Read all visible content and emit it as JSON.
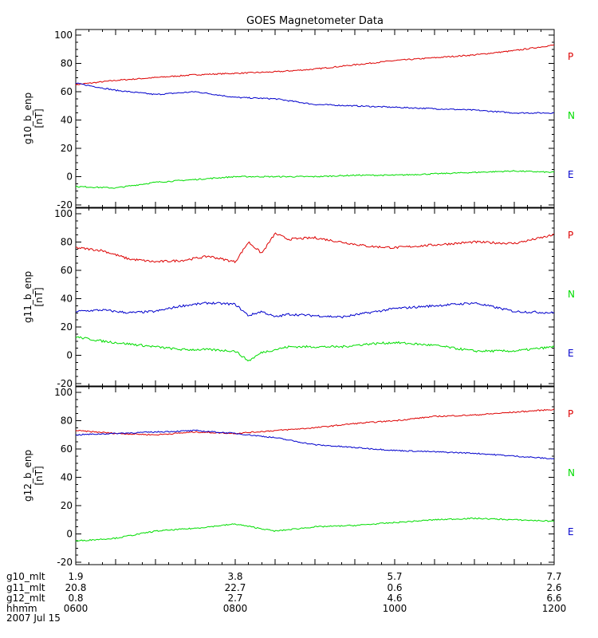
{
  "chart_data": {
    "type": "line",
    "title": "GOES Magnetometer Data",
    "x_range": [
      "0600",
      "1200"
    ],
    "date_label": "2007 Jul 15",
    "legend_colors": {
      "P": "#dd0000",
      "N": "#00dd00",
      "E": "#0000cc"
    },
    "panels": [
      {
        "id": "g10",
        "ylabel": "g10_b_enp",
        "yunit": "[nT]",
        "ylim": [
          -20,
          100
        ],
        "yticks": [
          "100",
          "80",
          "60",
          "40",
          "20",
          "0",
          "-20"
        ],
        "legend": [
          "P",
          "N",
          "E"
        ],
        "series": [
          {
            "color": "#dd0000",
            "x": [
              "0600",
              "0630",
              "0700",
              "0730",
              "0800",
              "0830",
              "0900",
              "0930",
              "1000",
              "1030",
              "1100",
              "1130",
              "1200"
            ],
            "y": [
              65,
              68,
              70,
              72,
              73,
              74,
              76,
              79,
              82,
              84,
              86,
              89,
              93
            ]
          },
          {
            "color": "#0000cc",
            "x": [
              "0600",
              "0630",
              "0700",
              "0730",
              "0800",
              "0830",
              "0900",
              "0930",
              "1000",
              "1030",
              "1100",
              "1130",
              "1200"
            ],
            "y": [
              66,
              61,
              58,
              60,
              56,
              55,
              51,
              50,
              49,
              48,
              47,
              45,
              45
            ]
          },
          {
            "color": "#00dd00",
            "x": [
              "0600",
              "0630",
              "0700",
              "0730",
              "0800",
              "0830",
              "0900",
              "0930",
              "1000",
              "1030",
              "1100",
              "1130",
              "1200"
            ],
            "y": [
              -7,
              -8,
              -4,
              -2,
              0,
              0,
              0,
              1,
              1,
              2,
              3,
              4,
              3
            ]
          }
        ]
      },
      {
        "id": "g11",
        "ylabel": "g11_b_enp",
        "yunit": "[nT]",
        "ylim": [
          -20,
          100
        ],
        "yticks": [
          "100",
          "80",
          "60",
          "40",
          "20",
          "0",
          "-20"
        ],
        "legend": [
          "P",
          "N",
          "E"
        ],
        "series": [
          {
            "color": "#dd0000",
            "x": [
              "0600",
              "0620",
              "0640",
              "0700",
              "0720",
              "0740",
              "0800",
              "0810",
              "0820",
              "0830",
              "0840",
              "0900",
              "0920",
              "0940",
              "1000",
              "1030",
              "1100",
              "1130",
              "1200"
            ],
            "y": [
              76,
              74,
              68,
              66,
              67,
              70,
              66,
              80,
              72,
              86,
              82,
              83,
              80,
              77,
              76,
              78,
              80,
              79,
              85
            ]
          },
          {
            "color": "#0000cc",
            "x": [
              "0600",
              "0620",
              "0640",
              "0700",
              "0720",
              "0740",
              "0800",
              "0810",
              "0820",
              "0830",
              "0840",
              "0900",
              "0920",
              "0940",
              "1000",
              "1030",
              "1100",
              "1130",
              "1200"
            ],
            "y": [
              31,
              32,
              30,
              31,
              35,
              37,
              36,
              28,
              31,
              27,
              29,
              28,
              27,
              30,
              33,
              35,
              37,
              31,
              30
            ]
          },
          {
            "color": "#00dd00",
            "x": [
              "0600",
              "0620",
              "0640",
              "0700",
              "0720",
              "0740",
              "0800",
              "0810",
              "0820",
              "0830",
              "0840",
              "0900",
              "0920",
              "0940",
              "1000",
              "1030",
              "1100",
              "1130",
              "1200"
            ],
            "y": [
              13,
              10,
              8,
              6,
              4,
              4,
              3,
              -4,
              2,
              4,
              6,
              6,
              6,
              8,
              9,
              7,
              3,
              3,
              6
            ]
          }
        ]
      },
      {
        "id": "g12",
        "ylabel": "g12_b_enp",
        "yunit": "[nT]",
        "ylim": [
          -20,
          100
        ],
        "yticks": [
          "100",
          "80",
          "60",
          "40",
          "20",
          "0",
          "-20"
        ],
        "legend": [
          "P",
          "N",
          "E"
        ],
        "series": [
          {
            "color": "#dd0000",
            "x": [
              "0600",
              "0630",
              "0700",
              "0730",
              "0800",
              "0830",
              "0900",
              "0930",
              "1000",
              "1030",
              "1100",
              "1130",
              "1200"
            ],
            "y": [
              73,
              71,
              70,
              72,
              71,
              73,
              75,
              78,
              80,
              83,
              84,
              86,
              88
            ]
          },
          {
            "color": "#0000cc",
            "x": [
              "0600",
              "0630",
              "0700",
              "0730",
              "0800",
              "0830",
              "0900",
              "0930",
              "1000",
              "1030",
              "1100",
              "1130",
              "1200"
            ],
            "y": [
              70,
              71,
              72,
              73,
              71,
              68,
              63,
              61,
              59,
              58,
              57,
              55,
              53
            ]
          },
          {
            "color": "#00dd00",
            "x": [
              "0600",
              "0630",
              "0700",
              "0730",
              "0800",
              "0830",
              "0900",
              "0930",
              "1000",
              "1030",
              "1100",
              "1130",
              "1200"
            ],
            "y": [
              -5,
              -3,
              2,
              4,
              7,
              2,
              5,
              6,
              8,
              10,
              11,
              10,
              9
            ]
          }
        ]
      }
    ],
    "footer": {
      "labels": [
        "g10_mlt",
        "g11_mlt",
        "g12_mlt",
        "hhmm"
      ],
      "columns": [
        {
          "g10_mlt": "1.9",
          "g11_mlt": "20.8",
          "g12_mlt": "0.8",
          "hhmm": "0600"
        },
        {
          "g10_mlt": "3.8",
          "g11_mlt": "22.7",
          "g12_mlt": "2.7",
          "hhmm": "0800"
        },
        {
          "g10_mlt": "5.7",
          "g11_mlt": "0.6",
          "g12_mlt": "4.6",
          "hhmm": "1000"
        },
        {
          "g10_mlt": "7.7",
          "g11_mlt": "2.6",
          "g12_mlt": "6.6",
          "hhmm": "1200"
        }
      ]
    }
  }
}
